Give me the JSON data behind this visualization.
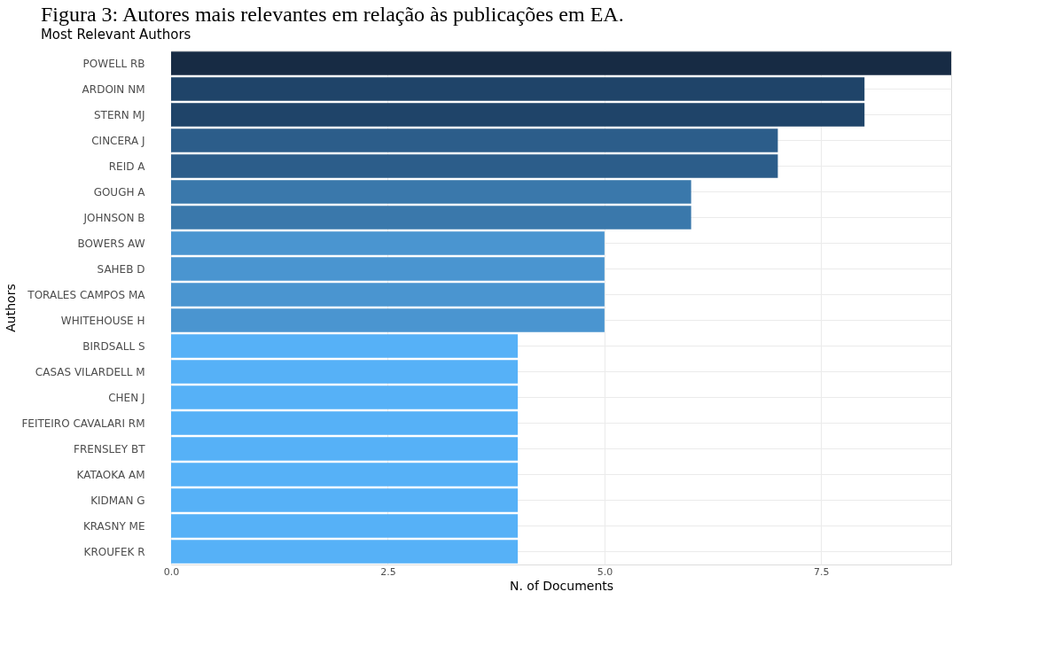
{
  "chart_data": {
    "type": "bar",
    "orientation": "horizontal",
    "title": "Figura 3: Autores mais relevantes em relação às publicações em EA.",
    "subtitle": "Most Relevant Authors",
    "xlabel": "N. of Documents",
    "ylabel": "Authors",
    "categories": [
      "POWELL RB",
      "ARDOIN NM",
      "STERN MJ",
      "CINCERA J",
      "REID A",
      "GOUGH A",
      "JOHNSON B",
      "BOWERS AW",
      "SAHEB D",
      "TORALES CAMPOS MA",
      "WHITEHOUSE H",
      "BIRDSALL S",
      "CASAS VILARDELL M",
      "CHEN J",
      "FEITEIRO CAVALARI RM",
      "FRENSLEY BT",
      "KATAOKA AM",
      "KIDMAN G",
      "KRASNY ME",
      "KROUFEK R"
    ],
    "values": [
      9,
      8,
      8,
      7,
      7,
      6,
      6,
      5,
      5,
      5,
      5,
      4,
      4,
      4,
      4,
      4,
      4,
      4,
      4,
      4
    ],
    "colors": [
      "#172b44",
      "#1f4469",
      "#1f4469",
      "#2c5d8a",
      "#2c5d8a",
      "#3a78ab",
      "#3a78ab",
      "#4a95d0",
      "#4a95d0",
      "#4a95d0",
      "#4a95d0",
      "#56b1f7",
      "#56b1f7",
      "#56b1f7",
      "#56b1f7",
      "#56b1f7",
      "#56b1f7",
      "#56b1f7",
      "#56b1f7",
      "#56b1f7"
    ],
    "xlim": [
      0,
      9
    ],
    "xticks": [
      {
        "value": 0,
        "label": "0.0"
      },
      {
        "value": 2.5,
        "label": "2.5"
      },
      {
        "value": 5,
        "label": "5.0"
      },
      {
        "value": 7.5,
        "label": "7.5"
      }
    ],
    "grid": true
  }
}
